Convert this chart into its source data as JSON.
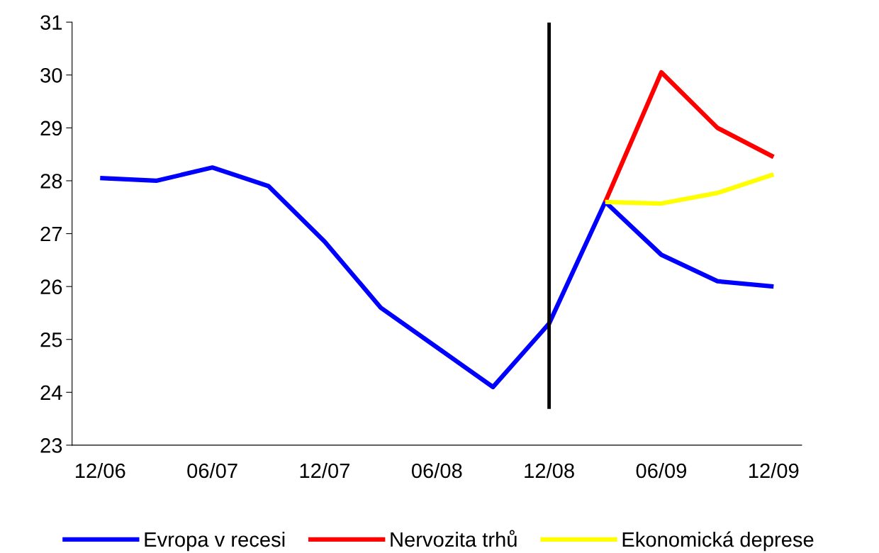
{
  "chart_data": {
    "type": "line",
    "categories": [
      "12/06",
      null,
      "06/07",
      null,
      "12/07",
      null,
      "06/08",
      null,
      "12/08",
      null,
      "06/09",
      null,
      "12/09"
    ],
    "series": [
      {
        "name": "Evropa v recesi",
        "color": "#0000ff",
        "values": [
          28.05,
          28.0,
          28.25,
          27.9,
          26.85,
          25.6,
          24.85,
          24.1,
          25.3,
          27.6,
          26.6,
          26.1,
          26.0
        ]
      },
      {
        "name": "Nervozita trhů",
        "color": "#ff0000",
        "values": [
          null,
          null,
          null,
          null,
          null,
          null,
          null,
          null,
          null,
          27.6,
          30.05,
          29.0,
          28.45
        ]
      },
      {
        "name": "Ekonomická deprese",
        "color": "#ffff00",
        "values": [
          null,
          null,
          null,
          null,
          null,
          null,
          null,
          null,
          null,
          27.6,
          27.57,
          27.77,
          28.12
        ]
      }
    ],
    "ylim": [
      23,
      31
    ],
    "yticks": [
      23,
      24,
      25,
      26,
      27,
      28,
      29,
      30,
      31
    ],
    "ref_lines": [
      {
        "axis": "x",
        "value": "12/08",
        "color": "#000000"
      }
    ],
    "grid": false,
    "legend": "bottom",
    "marker": "none",
    "line_style": "solid"
  }
}
